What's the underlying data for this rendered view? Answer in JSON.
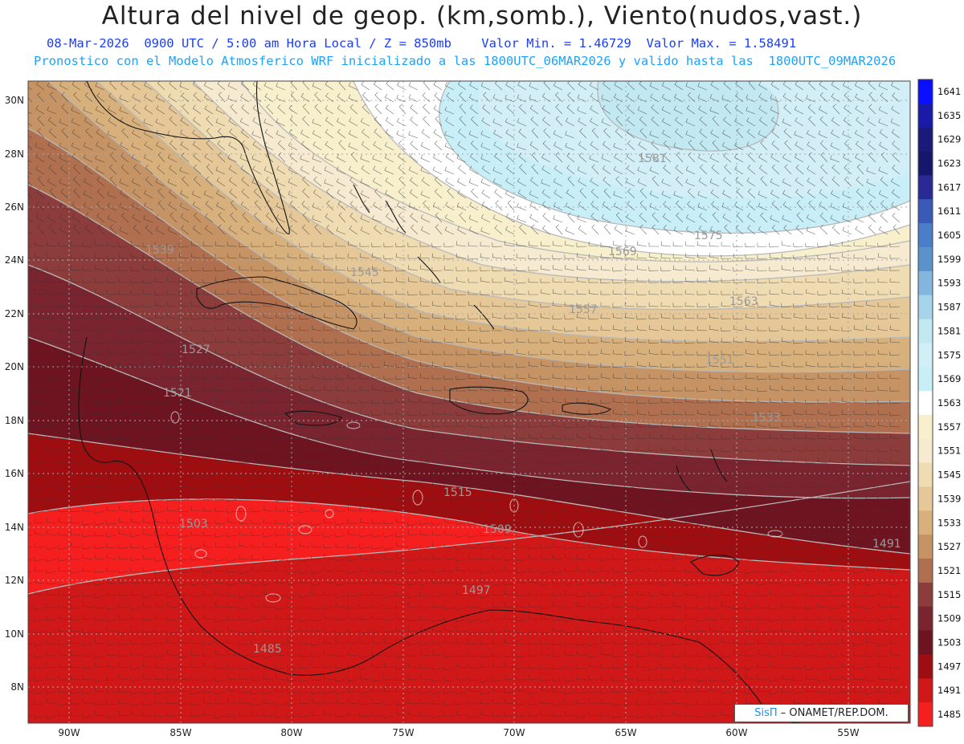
{
  "header": {
    "title": "Altura del nivel de geop. (km,somb.), Viento(nudos,vast.)",
    "subtitle_line1": "08-Mar-2026  0900 UTC / 5:00 am Hora Local / Z = 850mb    Valor Min. = 1.46729  Valor Max. = 1.58491",
    "subtitle_line2": "Pronostico con el Modelo Atmosferico WRF inicializado a las 1800UTC_06MAR2026 y valido hasta las  1800UTC_09MAR2026"
  },
  "axes": {
    "lat_labels": [
      "30N",
      "28N",
      "26N",
      "24N",
      "22N",
      "20N",
      "18N",
      "16N",
      "14N",
      "12N",
      "10N",
      "8N"
    ],
    "lon_labels": [
      "90W",
      "85W",
      "80W",
      "75W",
      "70W",
      "65W",
      "60W",
      "55W"
    ]
  },
  "colorbar": {
    "levels": [
      "1641",
      "1635",
      "1629",
      "1623",
      "1617",
      "1611",
      "1605",
      "1599",
      "1593",
      "1587",
      "1581",
      "1575",
      "1569",
      "1563",
      "1557",
      "1551",
      "1545",
      "1539",
      "1533",
      "1527",
      "1521",
      "1515",
      "1509",
      "1503",
      "1497",
      "1491",
      "1485"
    ],
    "colors": [
      "#0a10ff",
      "#1a1aa8",
      "#1a1a7a",
      "#16166a",
      "#2a2a96",
      "#3a5ab8",
      "#4a7ec8",
      "#5a92cc",
      "#82b6de",
      "#a6d4ea",
      "#c2e8f2",
      "#d2eef6",
      "#c8eef8",
      "#ffffff",
      "#f8f0cc",
      "#f6ead0",
      "#f0dcb2",
      "#e6c898",
      "#d8b07c",
      "#c69464",
      "#b07050",
      "#8c3c3a",
      "#7a2430",
      "#6e1420",
      "#9e0e10",
      "#d01818",
      "#f51f1f"
    ]
  },
  "contour_labels": [
    "1581",
    "1575",
    "1569",
    "1563",
    "1557",
    "1551",
    "1545",
    "1539",
    "1533",
    "1527",
    "1521",
    "1515",
    "1509",
    "1503",
    "1497",
    "1491",
    "1485"
  ],
  "credit": {
    "brand": "SisΠ",
    "org": "– ONAMET/REP.DOM."
  }
}
